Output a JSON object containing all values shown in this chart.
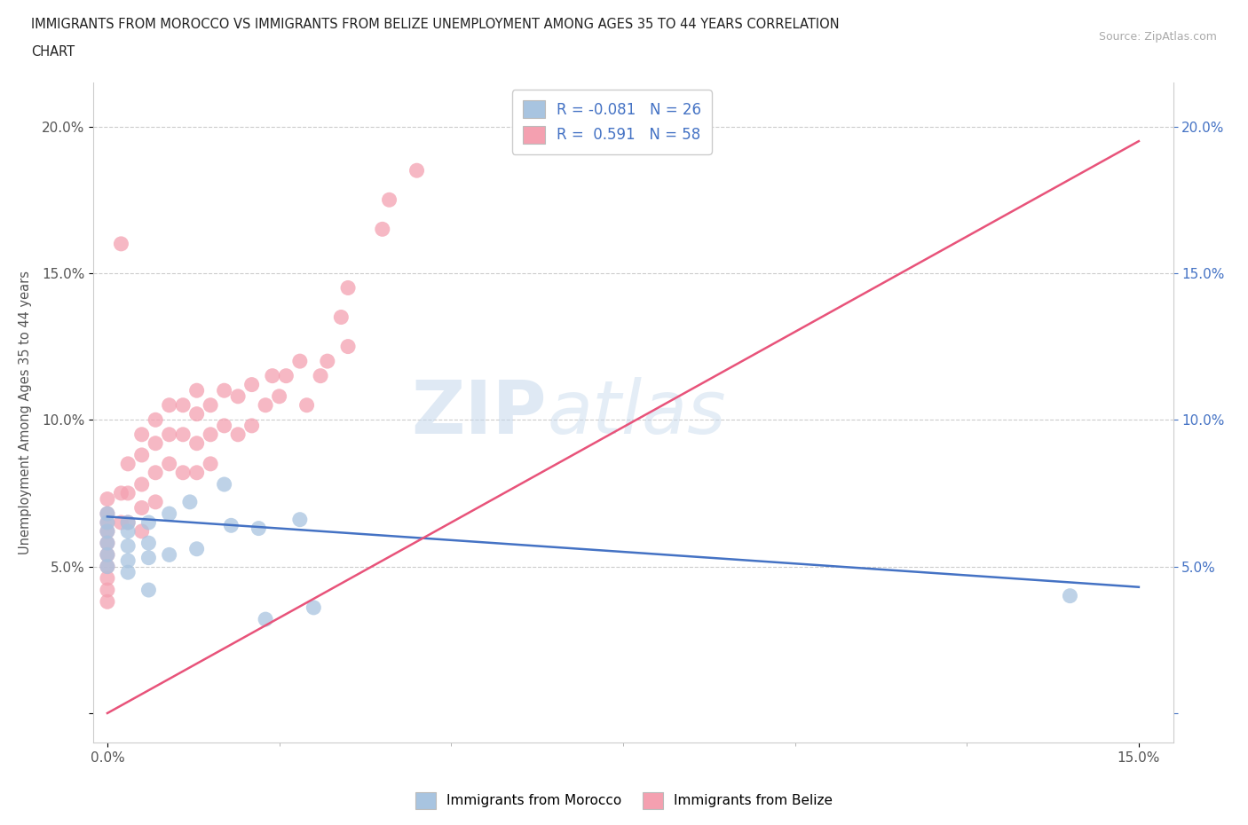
{
  "title_line1": "IMMIGRANTS FROM MOROCCO VS IMMIGRANTS FROM BELIZE UNEMPLOYMENT AMONG AGES 35 TO 44 YEARS CORRELATION",
  "title_line2": "CHART",
  "source_text": "Source: ZipAtlas.com",
  "ylabel": "Unemployment Among Ages 35 to 44 years",
  "xlim": [
    -0.002,
    0.155
  ],
  "ylim": [
    -0.01,
    0.215
  ],
  "morocco_color": "#a8c4e0",
  "belize_color": "#f4a0b0",
  "morocco_line_color": "#4472c4",
  "belize_line_color": "#e8537a",
  "R_morocco": -0.081,
  "N_morocco": 26,
  "R_belize": 0.591,
  "N_belize": 58,
  "morocco_scatter_x": [
    0.0,
    0.0,
    0.0,
    0.0,
    0.0,
    0.0,
    0.003,
    0.003,
    0.003,
    0.003,
    0.003,
    0.006,
    0.006,
    0.006,
    0.006,
    0.009,
    0.009,
    0.012,
    0.013,
    0.017,
    0.018,
    0.022,
    0.023,
    0.028,
    0.03,
    0.14
  ],
  "morocco_scatter_y": [
    0.068,
    0.065,
    0.062,
    0.058,
    0.054,
    0.05,
    0.065,
    0.062,
    0.057,
    0.052,
    0.048,
    0.065,
    0.058,
    0.053,
    0.042,
    0.068,
    0.054,
    0.072,
    0.056,
    0.078,
    0.064,
    0.063,
    0.032,
    0.066,
    0.036,
    0.04
  ],
  "belize_scatter_x": [
    0.0,
    0.0,
    0.0,
    0.0,
    0.0,
    0.0,
    0.0,
    0.0,
    0.0,
    0.0,
    0.002,
    0.002,
    0.002,
    0.003,
    0.003,
    0.003,
    0.005,
    0.005,
    0.005,
    0.005,
    0.005,
    0.007,
    0.007,
    0.007,
    0.007,
    0.009,
    0.009,
    0.009,
    0.011,
    0.011,
    0.011,
    0.013,
    0.013,
    0.013,
    0.013,
    0.015,
    0.015,
    0.015,
    0.017,
    0.017,
    0.019,
    0.019,
    0.021,
    0.021,
    0.023,
    0.024,
    0.025,
    0.026,
    0.028,
    0.029,
    0.031,
    0.032,
    0.034,
    0.035,
    0.035,
    0.04,
    0.041,
    0.045
  ],
  "belize_scatter_y": [
    0.073,
    0.068,
    0.065,
    0.062,
    0.058,
    0.054,
    0.05,
    0.046,
    0.042,
    0.038,
    0.16,
    0.075,
    0.065,
    0.085,
    0.075,
    0.065,
    0.095,
    0.088,
    0.078,
    0.07,
    0.062,
    0.1,
    0.092,
    0.082,
    0.072,
    0.105,
    0.095,
    0.085,
    0.105,
    0.095,
    0.082,
    0.11,
    0.102,
    0.092,
    0.082,
    0.105,
    0.095,
    0.085,
    0.11,
    0.098,
    0.108,
    0.095,
    0.112,
    0.098,
    0.105,
    0.115,
    0.108,
    0.115,
    0.12,
    0.105,
    0.115,
    0.12,
    0.135,
    0.125,
    0.145,
    0.165,
    0.175,
    0.185
  ]
}
